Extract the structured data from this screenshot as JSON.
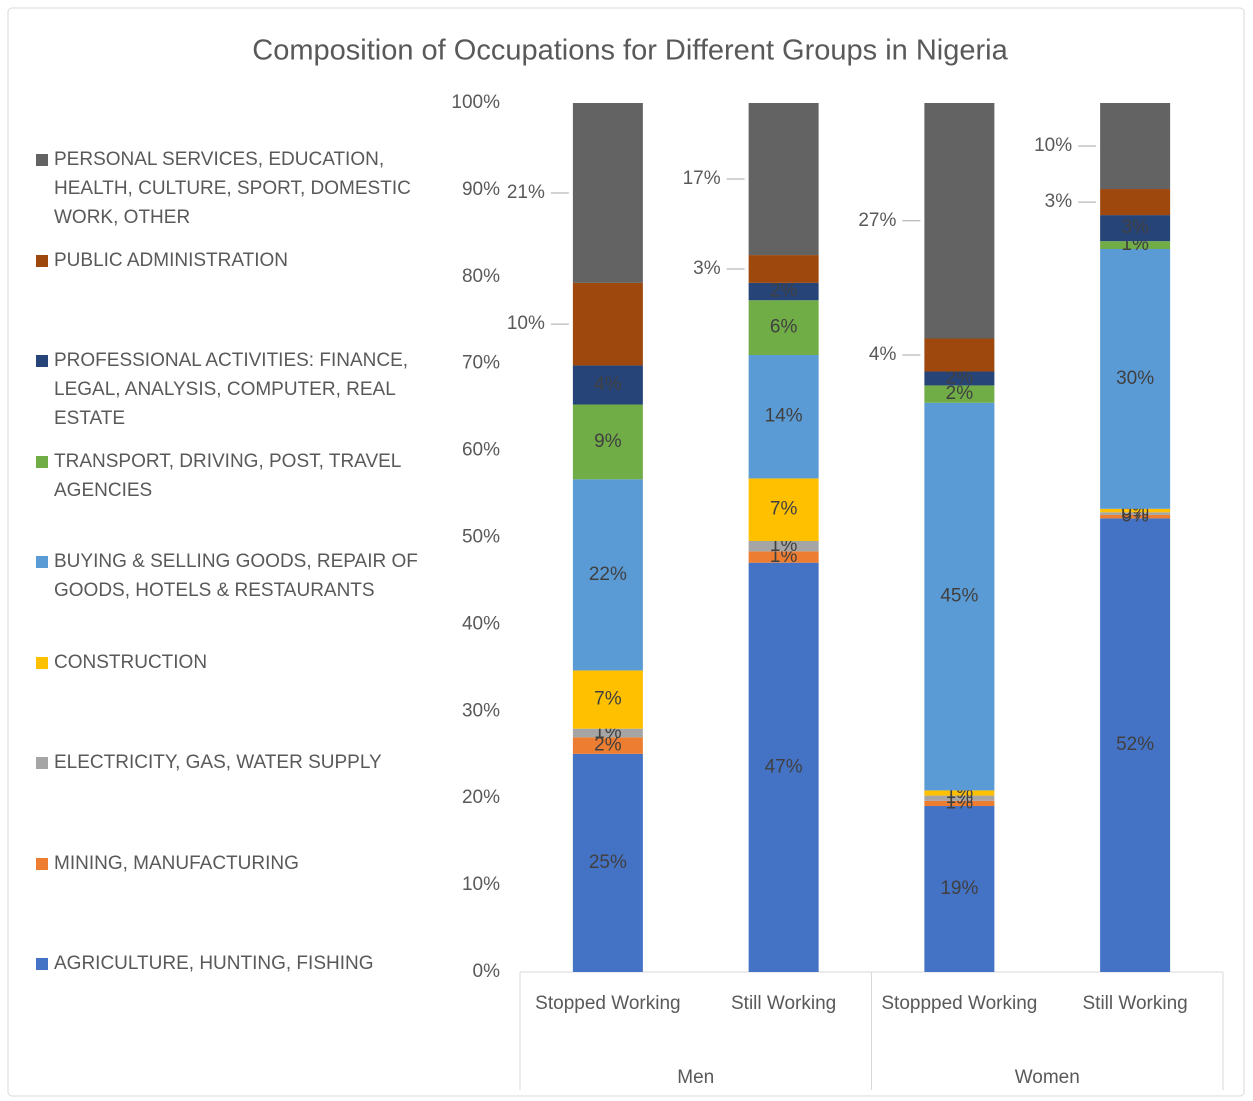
{
  "chart_data": {
    "type": "stacked_bar",
    "title": "Composition of Occupations for Different Groups in Nigeria",
    "groups": [
      {
        "name": "Men",
        "categories": [
          "Stopped Working",
          "Still Working"
        ]
      },
      {
        "name": "Women",
        "categories": [
          "Stoppped Working",
          "Still Working"
        ]
      }
    ],
    "ylim": [
      0,
      100
    ],
    "yticks": [
      {
        "value": 0,
        "label": "0%"
      },
      {
        "value": 10,
        "label": "10%"
      },
      {
        "value": 20,
        "label": "20%"
      },
      {
        "value": 30,
        "label": "30%"
      },
      {
        "value": 40,
        "label": "40%"
      },
      {
        "value": 50,
        "label": "50%"
      },
      {
        "value": 60,
        "label": "60%"
      },
      {
        "value": 70,
        "label": "70%"
      },
      {
        "value": 80,
        "label": "80%"
      },
      {
        "value": 90,
        "label": "90%"
      },
      {
        "value": 100,
        "label": "100%"
      }
    ],
    "series": [
      {
        "name": "AGRICULTURE, HUNTING, FISHING",
        "color": "#4472c4",
        "values": [
          25.1,
          47.1,
          19.1,
          52.2
        ],
        "value_labels": [
          "25%",
          "47%",
          "19%",
          "52%"
        ]
      },
      {
        "name": "MINING, MANUFACTURING",
        "color": "#ed7d31",
        "values": [
          1.9,
          1.3,
          0.6,
          0.4
        ],
        "value_labels": [
          "2%",
          "1%",
          "1%",
          "0%"
        ]
      },
      {
        "name": "ELECTRICITY, GAS, WATER SUPPLY",
        "color": "#a5a5a5",
        "values": [
          1.0,
          1.2,
          0.6,
          0.3
        ],
        "value_labels": [
          "1%",
          "1%",
          "1%",
          "0%"
        ]
      },
      {
        "name": "CONSTRUCTION",
        "color": "#ffc000",
        "values": [
          6.7,
          7.2,
          0.6,
          0.4
        ],
        "value_labels": [
          "7%",
          "7%",
          "1%",
          "0%"
        ]
      },
      {
        "name": "BUYING & SELLING GOODS, REPAIR OF GOODS, HOTELS & RESTAURANTS",
        "color": "#5b9bd5",
        "values": [
          22.0,
          14.2,
          44.6,
          29.9
        ],
        "value_labels": [
          "22%",
          "14%",
          "45%",
          "30%"
        ]
      },
      {
        "name": "TRANSPORT, DRIVING, POST, TRAVEL AGENCIES",
        "color": "#70ad47",
        "values": [
          8.6,
          6.3,
          2.0,
          0.9
        ],
        "value_labels": [
          "9%",
          "6%",
          "2%",
          "1%"
        ]
      },
      {
        "name": "PROFESSIONAL ACTIVITIES: FINANCE, LEGAL, ANALYSIS, COMPUTER, REAL ESTATE",
        "color": "#264478",
        "values": [
          4.5,
          2.0,
          1.6,
          3.0
        ],
        "value_labels": [
          "4%",
          "2%",
          "2%",
          "3%"
        ]
      },
      {
        "name": "PUBLIC ADMINISTRATION",
        "color": "#9e480e",
        "values": [
          9.5,
          3.2,
          3.8,
          3.0
        ],
        "value_labels": [
          "10%",
          "3%",
          "4%",
          "3%"
        ]
      },
      {
        "name": "PERSONAL SERVICES, EDUCATION, HEALTH, CULTURE, SPORT, DOMESTIC WORK, OTHER",
        "color": "#636363",
        "values": [
          20.7,
          17.5,
          27.1,
          9.9
        ],
        "value_labels": [
          "21%",
          "17%",
          "27%",
          "10%"
        ]
      }
    ]
  }
}
